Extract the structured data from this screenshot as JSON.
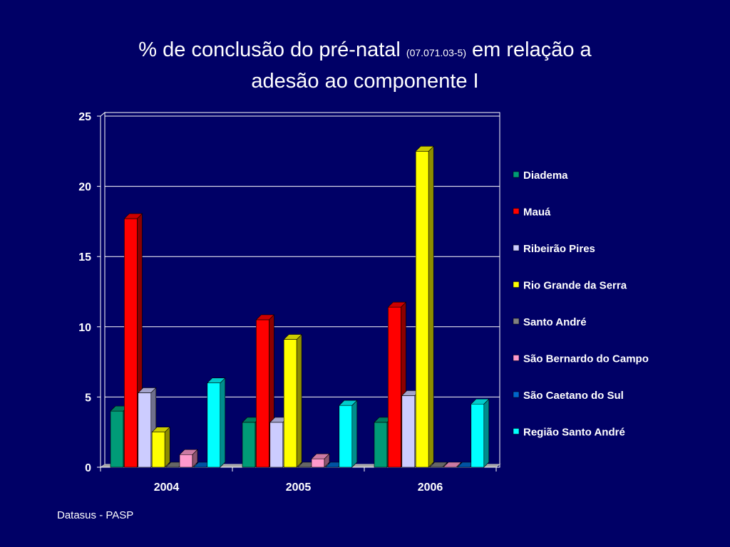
{
  "slide": {
    "title_part1": "% de conclusão do pré-natal",
    "title_code": "(07.071.03-5)",
    "title_part2": "em relação a",
    "title_line2": "adesão ao componente I",
    "source": "Datasus - PASP"
  },
  "chart_data": {
    "type": "bar",
    "categories": [
      "2004",
      "2005",
      "2006"
    ],
    "ylim": [
      0,
      25
    ],
    "yticks": [
      0,
      5,
      10,
      15,
      20,
      25
    ],
    "grid": true,
    "legend_position": "right",
    "series": [
      {
        "name": "Diadema",
        "color": "#009b77",
        "values": [
          4.0,
          3.2,
          3.2
        ]
      },
      {
        "name": "Mauá",
        "color": "#ff0000",
        "values": [
          17.7,
          10.5,
          11.4
        ]
      },
      {
        "name": "Ribeirão Pires",
        "color": "#ccccff",
        "values": [
          5.3,
          3.2,
          5.1
        ]
      },
      {
        "name": "Rio Grande da Serra",
        "color": "#ffff00",
        "values": [
          2.5,
          9.1,
          22.5
        ]
      },
      {
        "name": "Santo André",
        "color": "#808080",
        "values": [
          0,
          0,
          0
        ]
      },
      {
        "name": "São Bernardo do Campo",
        "color": "#ff99cc",
        "values": [
          0.9,
          0.6,
          0
        ]
      },
      {
        "name": "São Caetano do Sul",
        "color": "#0066cc",
        "values": [
          0,
          0,
          0
        ]
      },
      {
        "name": "Região Santo André",
        "color": "#00ffff",
        "values": [
          6.0,
          4.4,
          4.5
        ]
      }
    ]
  }
}
